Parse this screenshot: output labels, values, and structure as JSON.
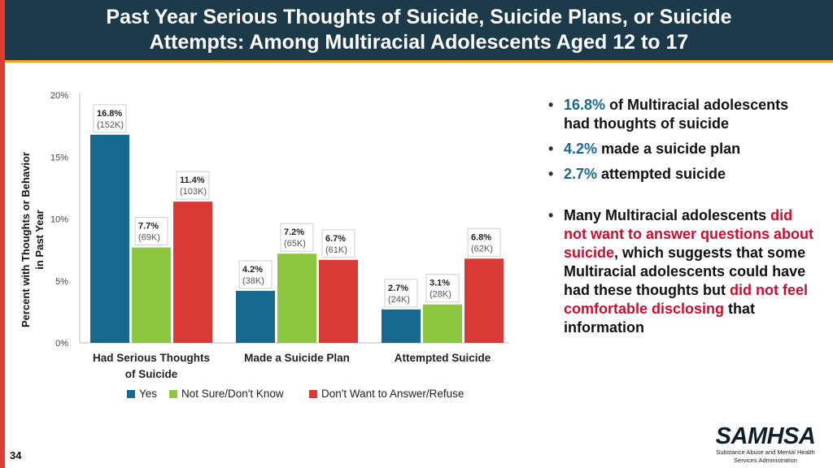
{
  "slide": {
    "title_line1": "Past Year Serious Thoughts of Suicide, Suicide Plans, or Suicide",
    "title_line2": "Attempts: Among Multiracial Adolescents Aged 12 to 17",
    "page_number": "34"
  },
  "colors": {
    "header_bg": "#1c3a4a",
    "accent_red": "#e03c31",
    "accent_orange": "#f5a31a",
    "yes": "#17698f",
    "not_sure": "#8dc63f",
    "refuse": "#d93a35"
  },
  "chart_data": {
    "type": "bar",
    "ylabel_line1": "Percent with Thoughts or Behavior",
    "ylabel_line2": "in Past Year",
    "ylim": [
      0,
      20
    ],
    "yticks": [
      0,
      5,
      10,
      15,
      20
    ],
    "ytick_labels": [
      "0%",
      "5%",
      "10%",
      "15%",
      "20%"
    ],
    "categories": [
      [
        "Had Serious Thoughts",
        "of Suicide"
      ],
      [
        "Made a Suicide Plan"
      ],
      [
        "Attempted Suicide"
      ]
    ],
    "series": [
      {
        "name": "Yes",
        "color": "#17698f",
        "values": [
          16.8,
          4.2,
          2.7
        ],
        "labels": [
          "16.8%",
          "4.2%",
          "2.7%"
        ],
        "counts": [
          "(152K)",
          "(38K)",
          "(24K)"
        ]
      },
      {
        "name": "Not Sure/Don't Know",
        "color": "#8dc63f",
        "values": [
          7.7,
          7.2,
          3.1
        ],
        "labels": [
          "7.7%",
          "7.2%",
          "3.1%"
        ],
        "counts": [
          "(69K)",
          "(65K)",
          "(28K)"
        ]
      },
      {
        "name": "Don't Want to Answer/Refuse",
        "color": "#d93a35",
        "values": [
          11.4,
          6.7,
          6.8
        ],
        "labels": [
          "11.4%",
          "6.7%",
          "6.8%"
        ],
        "counts": [
          "(103K)",
          "(61K)",
          "(62K)"
        ]
      }
    ],
    "legend_position": "bottom",
    "grid": false
  },
  "bullets": {
    "b1_value": "16.8%",
    "b1_text": " of Multiracial adolescents had thoughts of suicide",
    "b2_value": "4.2%",
    "b2_text": " made a suicide plan",
    "b3_value": "2.7%",
    "b3_text": " attempted suicide",
    "b4_part1": "Many Multiracial adolescents ",
    "b4_red1": "did not want to answer questions about suicide",
    "b4_part2": ", which suggests that some Multiracial adolescents could have had these thoughts but ",
    "b4_red2": "did not feel comfortable disclosing",
    "b4_part3": " that information"
  },
  "logo": {
    "wordmark": "SAMHSA",
    "tagline1": "Substance Abuse and Mental Health",
    "tagline2": "Services Administration"
  }
}
